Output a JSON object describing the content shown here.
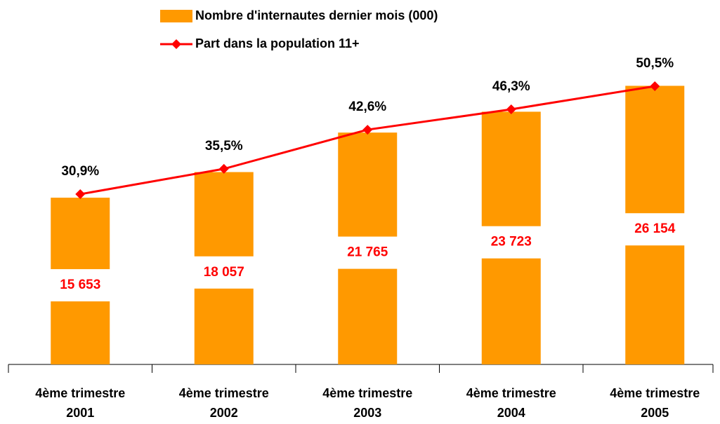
{
  "chart_data": {
    "type": "bar-line",
    "categories": [
      "4ème trimestre 2001",
      "4ème trimestre 2002",
      "4ème trimestre 2003",
      "4ème trimestre 2004",
      "4ème trimestre 2005"
    ],
    "series": [
      {
        "name": "Nombre d'internautes dernier mois (000)",
        "type": "bar",
        "color": "#ff9900",
        "label_color": "#ff0000",
        "values": [
          15653,
          18057,
          21765,
          23723,
          26154
        ],
        "value_labels": [
          "15 653",
          "18 057",
          "21 765",
          "23 723",
          "26 154"
        ]
      },
      {
        "name": "Part dans la population 11+",
        "type": "line",
        "axis": "y2",
        "color": "#ff0000",
        "label_color": "#000000",
        "values": [
          30.9,
          35.5,
          42.6,
          46.3,
          50.5
        ],
        "value_labels": [
          "30,9%",
          "35,5%",
          "42,6%",
          "46,3%",
          "50,5%"
        ]
      }
    ],
    "ylim": [
      0,
      30000
    ],
    "y2lim": [
      0,
      58
    ]
  }
}
